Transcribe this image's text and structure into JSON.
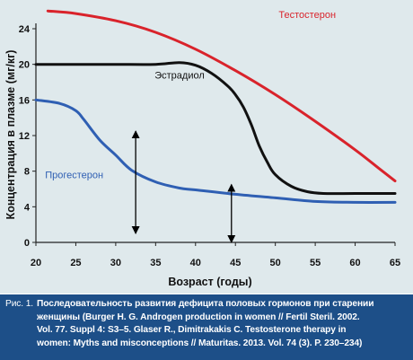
{
  "chart_data": {
    "type": "line",
    "title": "",
    "xlabel": "Возраст (годы)",
    "ylabel": "Концентрация в плазме (мг/кг)",
    "xlim": [
      20,
      65
    ],
    "ylim": [
      0,
      24
    ],
    "xticks": [
      20,
      25,
      30,
      35,
      40,
      45,
      50,
      55,
      60,
      65
    ],
    "yticks": [
      0,
      4,
      8,
      12,
      16,
      20,
      24
    ],
    "grid": false,
    "legend": "none",
    "series": [
      {
        "name": "Тестостерон",
        "color": "#d9232b",
        "x": [
          21.5,
          25,
          30,
          35,
          40,
          45,
          50,
          55,
          60,
          63,
          65
        ],
        "y": [
          26,
          25.7,
          24.9,
          23.6,
          21.7,
          19.3,
          16.6,
          13.6,
          10.4,
          8.3,
          6.9
        ]
      },
      {
        "name": "Эстрадиол",
        "color": "#111111",
        "x": [
          20,
          25,
          30,
          35,
          38,
          40,
          42,
          44,
          45,
          46,
          47,
          48,
          49,
          50,
          52,
          54,
          56,
          60,
          65
        ],
        "y": [
          20,
          20,
          20,
          20,
          20.2,
          19.9,
          19,
          17.6,
          16.6,
          15.2,
          13.2,
          10.8,
          9,
          7.6,
          6.3,
          5.7,
          5.5,
          5.5,
          5.5
        ]
      },
      {
        "name": "Прогестерон",
        "color": "#2f5fb3",
        "x": [
          20,
          23,
          25,
          26,
          28,
          30,
          32,
          35,
          38,
          40,
          45,
          50,
          55,
          60,
          65
        ],
        "y": [
          16,
          15.6,
          14.8,
          13.8,
          11.5,
          9.8,
          8.1,
          6.8,
          6.1,
          5.9,
          5.4,
          5,
          4.6,
          4.5,
          4.5
        ]
      }
    ],
    "series_labels": [
      {
        "series": "Тестостерон",
        "text": "Тестостерон",
        "x": 54,
        "y": 25.2
      },
      {
        "series": "Эстрадиол",
        "text": "Эстрадиол",
        "x": 38,
        "y": 18.4
      },
      {
        "series": "Прогестерон",
        "text": "Прогестерон",
        "x": 24.8,
        "y": 7.2
      }
    ],
    "arrows": [
      {
        "x": 32.5,
        "y_from": 1,
        "y_to": 12.5
      },
      {
        "x": 44.5,
        "y_from": 0,
        "y_to": 6.5
      }
    ]
  },
  "caption": {
    "label": "Рис. 1.",
    "lines": [
      "Последовательность развития дефицита половых гормонов при старении",
      "женщины (Burger H. G. Androgen production in women // Fertil Steril. 2002.",
      "Vol. 77. Suppl 4: S3–5. Glaser R., Dimitrakakis C. Testosterone therapy in",
      "women: Myths and misconceptions // Maturitas. 2013. Vol. 74 (3). P. 230–234)"
    ]
  }
}
